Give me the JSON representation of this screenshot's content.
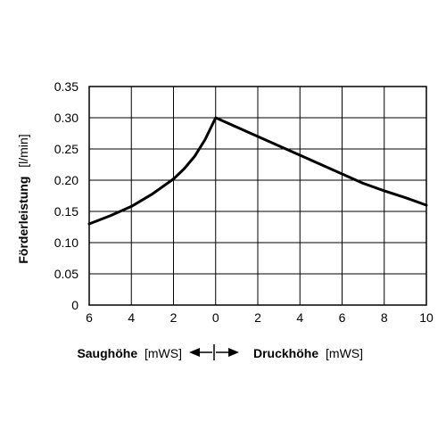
{
  "chart_data": {
    "type": "line",
    "ylabel": "Förderleistung",
    "ylabel_unit": "[l/min]",
    "xlabel_left": "Saughöhe",
    "xlabel_left_unit": "[mWS]",
    "xlabel_right": "Druckhöhe",
    "xlabel_right_unit": "[mWS]",
    "xlim": [
      -6,
      10
    ],
    "ylim": [
      0,
      0.35
    ],
    "grid": true,
    "x_ticks": [
      -6,
      -4,
      -2,
      0,
      2,
      4,
      6,
      8,
      10
    ],
    "x_tick_labels": [
      "6",
      "4",
      "2",
      "0",
      "2",
      "4",
      "6",
      "8",
      "10"
    ],
    "y_ticks": [
      0,
      0.05,
      0.1,
      0.15,
      0.2,
      0.25,
      0.3,
      0.35
    ],
    "y_tick_labels": [
      "0",
      "0.05",
      "0.10",
      "0.15",
      "0.20",
      "0.25",
      "0.30",
      "0.35"
    ],
    "series": [
      {
        "x": [
          -6,
          -5,
          -4,
          -3,
          -2,
          -1.5,
          -1,
          -0.5,
          0,
          1,
          2,
          3,
          4,
          5,
          6,
          7,
          8,
          9,
          10
        ],
        "y": [
          0.13,
          0.143,
          0.158,
          0.178,
          0.202,
          0.218,
          0.238,
          0.265,
          0.3,
          0.285,
          0.27,
          0.255,
          0.24,
          0.225,
          0.21,
          0.195,
          0.183,
          0.172,
          0.16
        ]
      }
    ]
  }
}
